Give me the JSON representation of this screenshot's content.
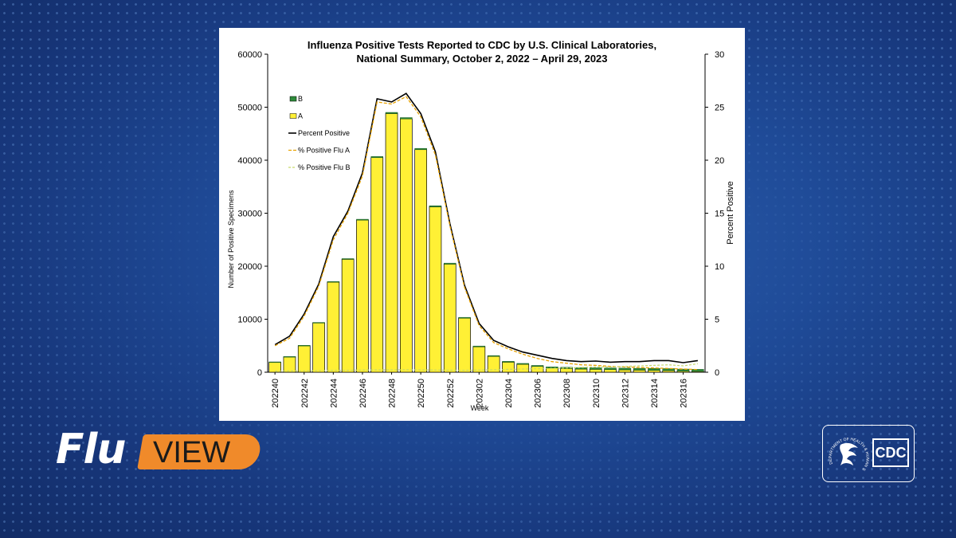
{
  "brand": {
    "flu_word": "Flu",
    "view_word": "VIEW",
    "agency": "CDC",
    "hhs_text": "DEPARTMENT OF HEALTH & HUMAN SERVICES · USA",
    "colors": {
      "orange": "#f08a2a",
      "navy": "#1f4b98",
      "white": "#ffffff"
    }
  },
  "chart_data": {
    "type": "bar",
    "title": "Influenza Positive Tests Reported to CDC by U.S. Clinical Laboratories,",
    "subtitle": "National Summary,  October 2, 2022 – April 29, 2023",
    "xlabel": "Week",
    "ylabel": "Number of Positive Specimens",
    "y2label": "Percent Positive",
    "ylim": [
      0,
      60000
    ],
    "y2lim": [
      0,
      30
    ],
    "yticks": [
      "0",
      "10000",
      "20000",
      "30000",
      "40000",
      "50000",
      "60000"
    ],
    "y2ticks": [
      "0",
      "5",
      "10",
      "15",
      "20",
      "25",
      "30"
    ],
    "categories": [
      "202240",
      "202241",
      "202242",
      "202243",
      "202244",
      "202245",
      "202246",
      "202247",
      "202248",
      "202249",
      "202250",
      "202251",
      "202252",
      "202301",
      "202302",
      "202303",
      "202304",
      "202305",
      "202306",
      "202307",
      "202308",
      "202309",
      "202310",
      "202311",
      "202312",
      "202313",
      "202314",
      "202315",
      "202316",
      "202317"
    ],
    "tick_labels": [
      "202240",
      "202242",
      "202244",
      "202246",
      "202248",
      "202250",
      "202252",
      "202302",
      "202304",
      "202306",
      "202308",
      "202310",
      "202312",
      "202314",
      "202316"
    ],
    "series": [
      {
        "name": "B",
        "kind": "bar",
        "color": "#2e8b3a",
        "values": [
          50,
          60,
          70,
          90,
          110,
          130,
          160,
          190,
          220,
          240,
          230,
          210,
          180,
          150,
          140,
          140,
          150,
          160,
          180,
          200,
          230,
          250,
          280,
          300,
          320,
          340,
          360,
          380,
          390,
          390
        ]
      },
      {
        "name": "A",
        "kind": "bar",
        "color": "#fff035",
        "values": [
          1900,
          2900,
          5000,
          9300,
          17000,
          21300,
          28700,
          40500,
          48800,
          47800,
          42000,
          31200,
          20400,
          10200,
          4800,
          3000,
          1900,
          1500,
          1100,
          800,
          700,
          600,
          550,
          500,
          450,
          400,
          350,
          300,
          200,
          150
        ]
      },
      {
        "name": "Percent Positive",
        "kind": "line",
        "color": "#000000",
        "values": [
          2.6,
          3.4,
          5.5,
          8.3,
          12.8,
          15.2,
          18.8,
          25.8,
          25.5,
          26.3,
          24.4,
          20.8,
          14.0,
          8.2,
          4.6,
          3.0,
          2.4,
          1.9,
          1.6,
          1.3,
          1.1,
          1.0,
          1.05,
          0.95,
          1.0,
          1.0,
          1.1,
          1.1,
          0.9,
          1.1
        ]
      },
      {
        "name": "% Positive Flu A",
        "kind": "line",
        "color": "#e8a200",
        "values": [
          2.5,
          3.2,
          5.3,
          8.1,
          12.5,
          15.0,
          18.5,
          25.5,
          25.3,
          26.0,
          24.1,
          20.5,
          13.8,
          8.0,
          4.4,
          2.8,
          2.2,
          1.7,
          1.3,
          1.0,
          0.85,
          0.7,
          0.65,
          0.55,
          0.5,
          0.45,
          0.4,
          0.35,
          0.3,
          0.25
        ]
      },
      {
        "name": "% Positive Flu B",
        "kind": "line",
        "color": "#c7d96a",
        "values": [
          0.1,
          0.12,
          0.13,
          0.15,
          0.17,
          0.18,
          0.2,
          0.22,
          0.22,
          0.23,
          0.22,
          0.2,
          0.19,
          0.18,
          0.2,
          0.23,
          0.27,
          0.3,
          0.33,
          0.36,
          0.4,
          0.45,
          0.5,
          0.5,
          0.55,
          0.6,
          0.65,
          0.7,
          0.6,
          0.8
        ]
      }
    ]
  }
}
